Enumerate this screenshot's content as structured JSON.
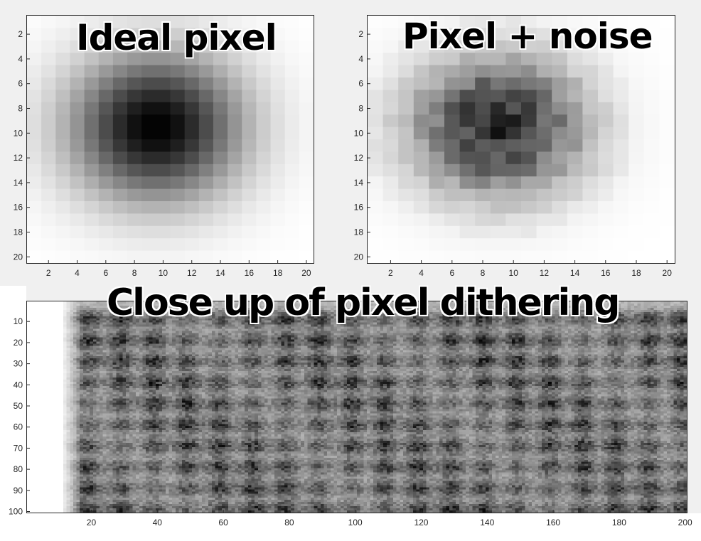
{
  "chart_data": [
    {
      "type": "heatmap",
      "title": "Ideal pixel",
      "colormap": "gray",
      "xlim": [
        0.5,
        20.5
      ],
      "ylim": [
        0.5,
        20.5
      ],
      "y_direction": "reverse",
      "xticks": [
        2,
        4,
        6,
        8,
        10,
        12,
        14,
        16,
        18,
        20
      ],
      "yticks": [
        2,
        4,
        6,
        8,
        10,
        12,
        14,
        16,
        18,
        20
      ],
      "center": [
        9.5,
        9.5
      ],
      "min_intensity": 0.0,
      "description_values": "2D Gaussian spot, darkest at center (~row 9-10, col 9-10), fading to white at edges"
    },
    {
      "type": "heatmap",
      "title": "Pixel + noise",
      "colormap": "gray",
      "xlim": [
        0.5,
        20.5
      ],
      "ylim": [
        0.5,
        20.5
      ],
      "y_direction": "reverse",
      "xticks": [
        2,
        4,
        6,
        8,
        10,
        12,
        14,
        16,
        18,
        20
      ],
      "yticks": [
        2,
        4,
        6,
        8,
        10,
        12,
        14,
        16,
        18,
        20
      ],
      "center": [
        9.0,
        9.5
      ],
      "min_intensity": 0.0
    },
    {
      "type": "heatmap",
      "title": "Close up of pixel dithering",
      "colormap": "gray",
      "xlim": [
        0.5,
        200.5
      ],
      "ylim": [
        0.5,
        100.5
      ],
      "y_direction": "reverse",
      "xticks": [
        20,
        40,
        60,
        80,
        100,
        120,
        140,
        160,
        180,
        200
      ],
      "yticks": [
        10,
        20,
        30,
        40,
        50,
        60,
        70,
        80,
        90,
        100
      ],
      "grid_spacing": 10,
      "first_spot_x": 18,
      "first_spot_y": 18
    }
  ]
}
